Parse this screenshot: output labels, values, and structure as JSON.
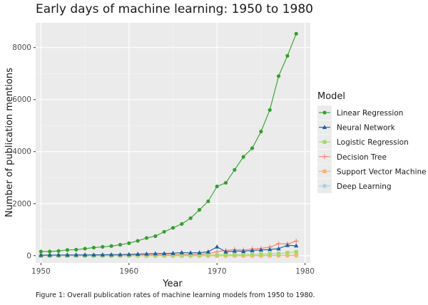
{
  "chart_data": {
    "type": "line",
    "title": "Early days of machine learning: 1950 to 1980",
    "xlabel": "Year",
    "ylabel": "Number of publication mentions",
    "caption": "Figure 1: Overall publication rates of machine learning models from 1950 to 1980.",
    "legend_title": "Model",
    "legend_position": "right",
    "grid": true,
    "xlim": [
      1949.4,
      1980.6
    ],
    "ylim": [
      -280,
      8950
    ],
    "x_ticks": [
      1950,
      1960,
      1970,
      1980
    ],
    "y_ticks": [
      0,
      2000,
      4000,
      6000,
      8000
    ],
    "x": [
      1950,
      1951,
      1952,
      1953,
      1954,
      1955,
      1956,
      1957,
      1958,
      1959,
      1960,
      1961,
      1962,
      1963,
      1964,
      1965,
      1966,
      1967,
      1968,
      1969,
      1970,
      1971,
      1972,
      1973,
      1974,
      1975,
      1976,
      1977,
      1978,
      1979
    ],
    "series": [
      {
        "name": "Linear Regression",
        "color": "#33a02c",
        "marker": "circle",
        "values": [
          160,
          160,
          180,
          220,
          230,
          270,
          310,
          340,
          370,
          420,
          480,
          570,
          680,
          750,
          920,
          1070,
          1220,
          1440,
          1760,
          2090,
          2660,
          2800,
          3300,
          3800,
          4130,
          4770,
          5600,
          6900,
          7680,
          8530
        ]
      },
      {
        "name": "Neural Network",
        "color": "#1f5f9e",
        "marker": "triangle",
        "values": [
          20,
          22,
          25,
          27,
          28,
          30,
          32,
          35,
          38,
          42,
          50,
          60,
          70,
          80,
          85,
          95,
          120,
          110,
          115,
          150,
          340,
          150,
          180,
          170,
          200,
          220,
          240,
          270,
          400,
          380
        ]
      },
      {
        "name": "Logistic Regression",
        "color": "#a6d96a",
        "marker": "square",
        "values": [
          5,
          5,
          5,
          5,
          6,
          6,
          6,
          7,
          7,
          8,
          8,
          9,
          10,
          10,
          12,
          14,
          15,
          18,
          20,
          25,
          30,
          35,
          40,
          45,
          50,
          55,
          70,
          80,
          110,
          150
        ]
      },
      {
        "name": "Decision Tree",
        "color": "#fb8072",
        "marker": "plus",
        "values": [
          10,
          10,
          12,
          12,
          13,
          14,
          15,
          16,
          17,
          20,
          22,
          25,
          28,
          30,
          35,
          40,
          45,
          50,
          60,
          80,
          150,
          200,
          240,
          220,
          260,
          280,
          330,
          460,
          450,
          560
        ]
      },
      {
        "name": "Support Vector Machine",
        "color": "#fdb462",
        "marker": "square",
        "values": [
          0,
          0,
          0,
          0,
          0,
          0,
          0,
          0,
          0,
          0,
          0,
          0,
          0,
          0,
          0,
          0,
          0,
          0,
          0,
          0,
          0,
          0,
          0,
          0,
          0,
          5,
          8,
          10,
          12,
          15
        ]
      },
      {
        "name": "Deep Learning",
        "color": "#9ecae1",
        "marker": "asterisk",
        "values": [
          0,
          0,
          0,
          0,
          0,
          0,
          0,
          0,
          0,
          0,
          0,
          0,
          0,
          0,
          0,
          0,
          0,
          0,
          0,
          0,
          0,
          0,
          0,
          0,
          0,
          0,
          0,
          5,
          8,
          10
        ]
      }
    ]
  }
}
